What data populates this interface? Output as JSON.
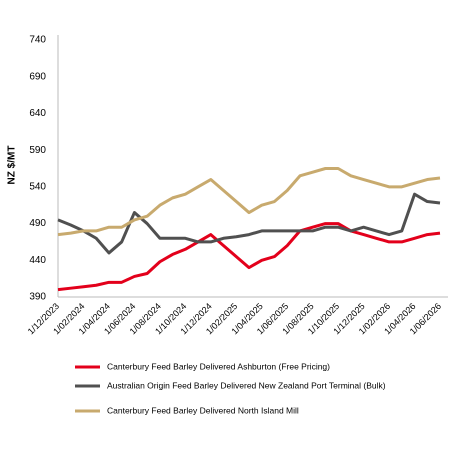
{
  "chart_data": {
    "type": "line",
    "y_label": "NZ $/MT",
    "categories": [
      "1/12/2023",
      null,
      "1/02/2024",
      null,
      "1/04/2024",
      null,
      "1/06/2024",
      null,
      "1/08/2024",
      null,
      "1/10/2024",
      null,
      "1/12/2024",
      null,
      "1/02/2025",
      null,
      "1/04/2025",
      null,
      "1/06/2025",
      null,
      "1/08/2025",
      null,
      "1/10/2025",
      null,
      "1/12/2025",
      null,
      "1/02/2026",
      null,
      "1/04/2026",
      null,
      "1/06/2026"
    ],
    "series": [
      {
        "name": "Canterbury Feed Barley Delivered Ashburton (Free Pricing)",
        "color": "#e3001b",
        "values": [
          400,
          402,
          404,
          406,
          410,
          410,
          418,
          422,
          438,
          448,
          455,
          465,
          475,
          460,
          445,
          430,
          440,
          445,
          460,
          480,
          485,
          490,
          490,
          480,
          475,
          470,
          465,
          465,
          470,
          475,
          477
        ]
      },
      {
        "name": "Australian Origin Feed Barley Delivered New Zealand Port Terminal (Bulk)",
        "color": "#505050",
        "values": [
          495,
          488,
          480,
          470,
          450,
          465,
          505,
          490,
          470,
          470,
          470,
          465,
          465,
          470,
          472,
          475,
          480,
          480,
          480,
          480,
          480,
          485,
          485,
          480,
          485,
          480,
          475,
          480,
          530,
          520,
          518
        ]
      },
      {
        "name": "Canterbury Feed Barley Delivered North Island Mill",
        "color": "#c8aa6e",
        "values": [
          475,
          477,
          480,
          480,
          485,
          485,
          495,
          500,
          515,
          525,
          530,
          540,
          550,
          535,
          520,
          505,
          515,
          520,
          535,
          555,
          560,
          565,
          565,
          555,
          550,
          545,
          540,
          540,
          545,
          550,
          552
        ]
      }
    ],
    "ylim": [
      390,
      740
    ],
    "yticks": [
      390,
      440,
      490,
      540,
      590,
      640,
      690,
      740
    ],
    "grid": false
  }
}
